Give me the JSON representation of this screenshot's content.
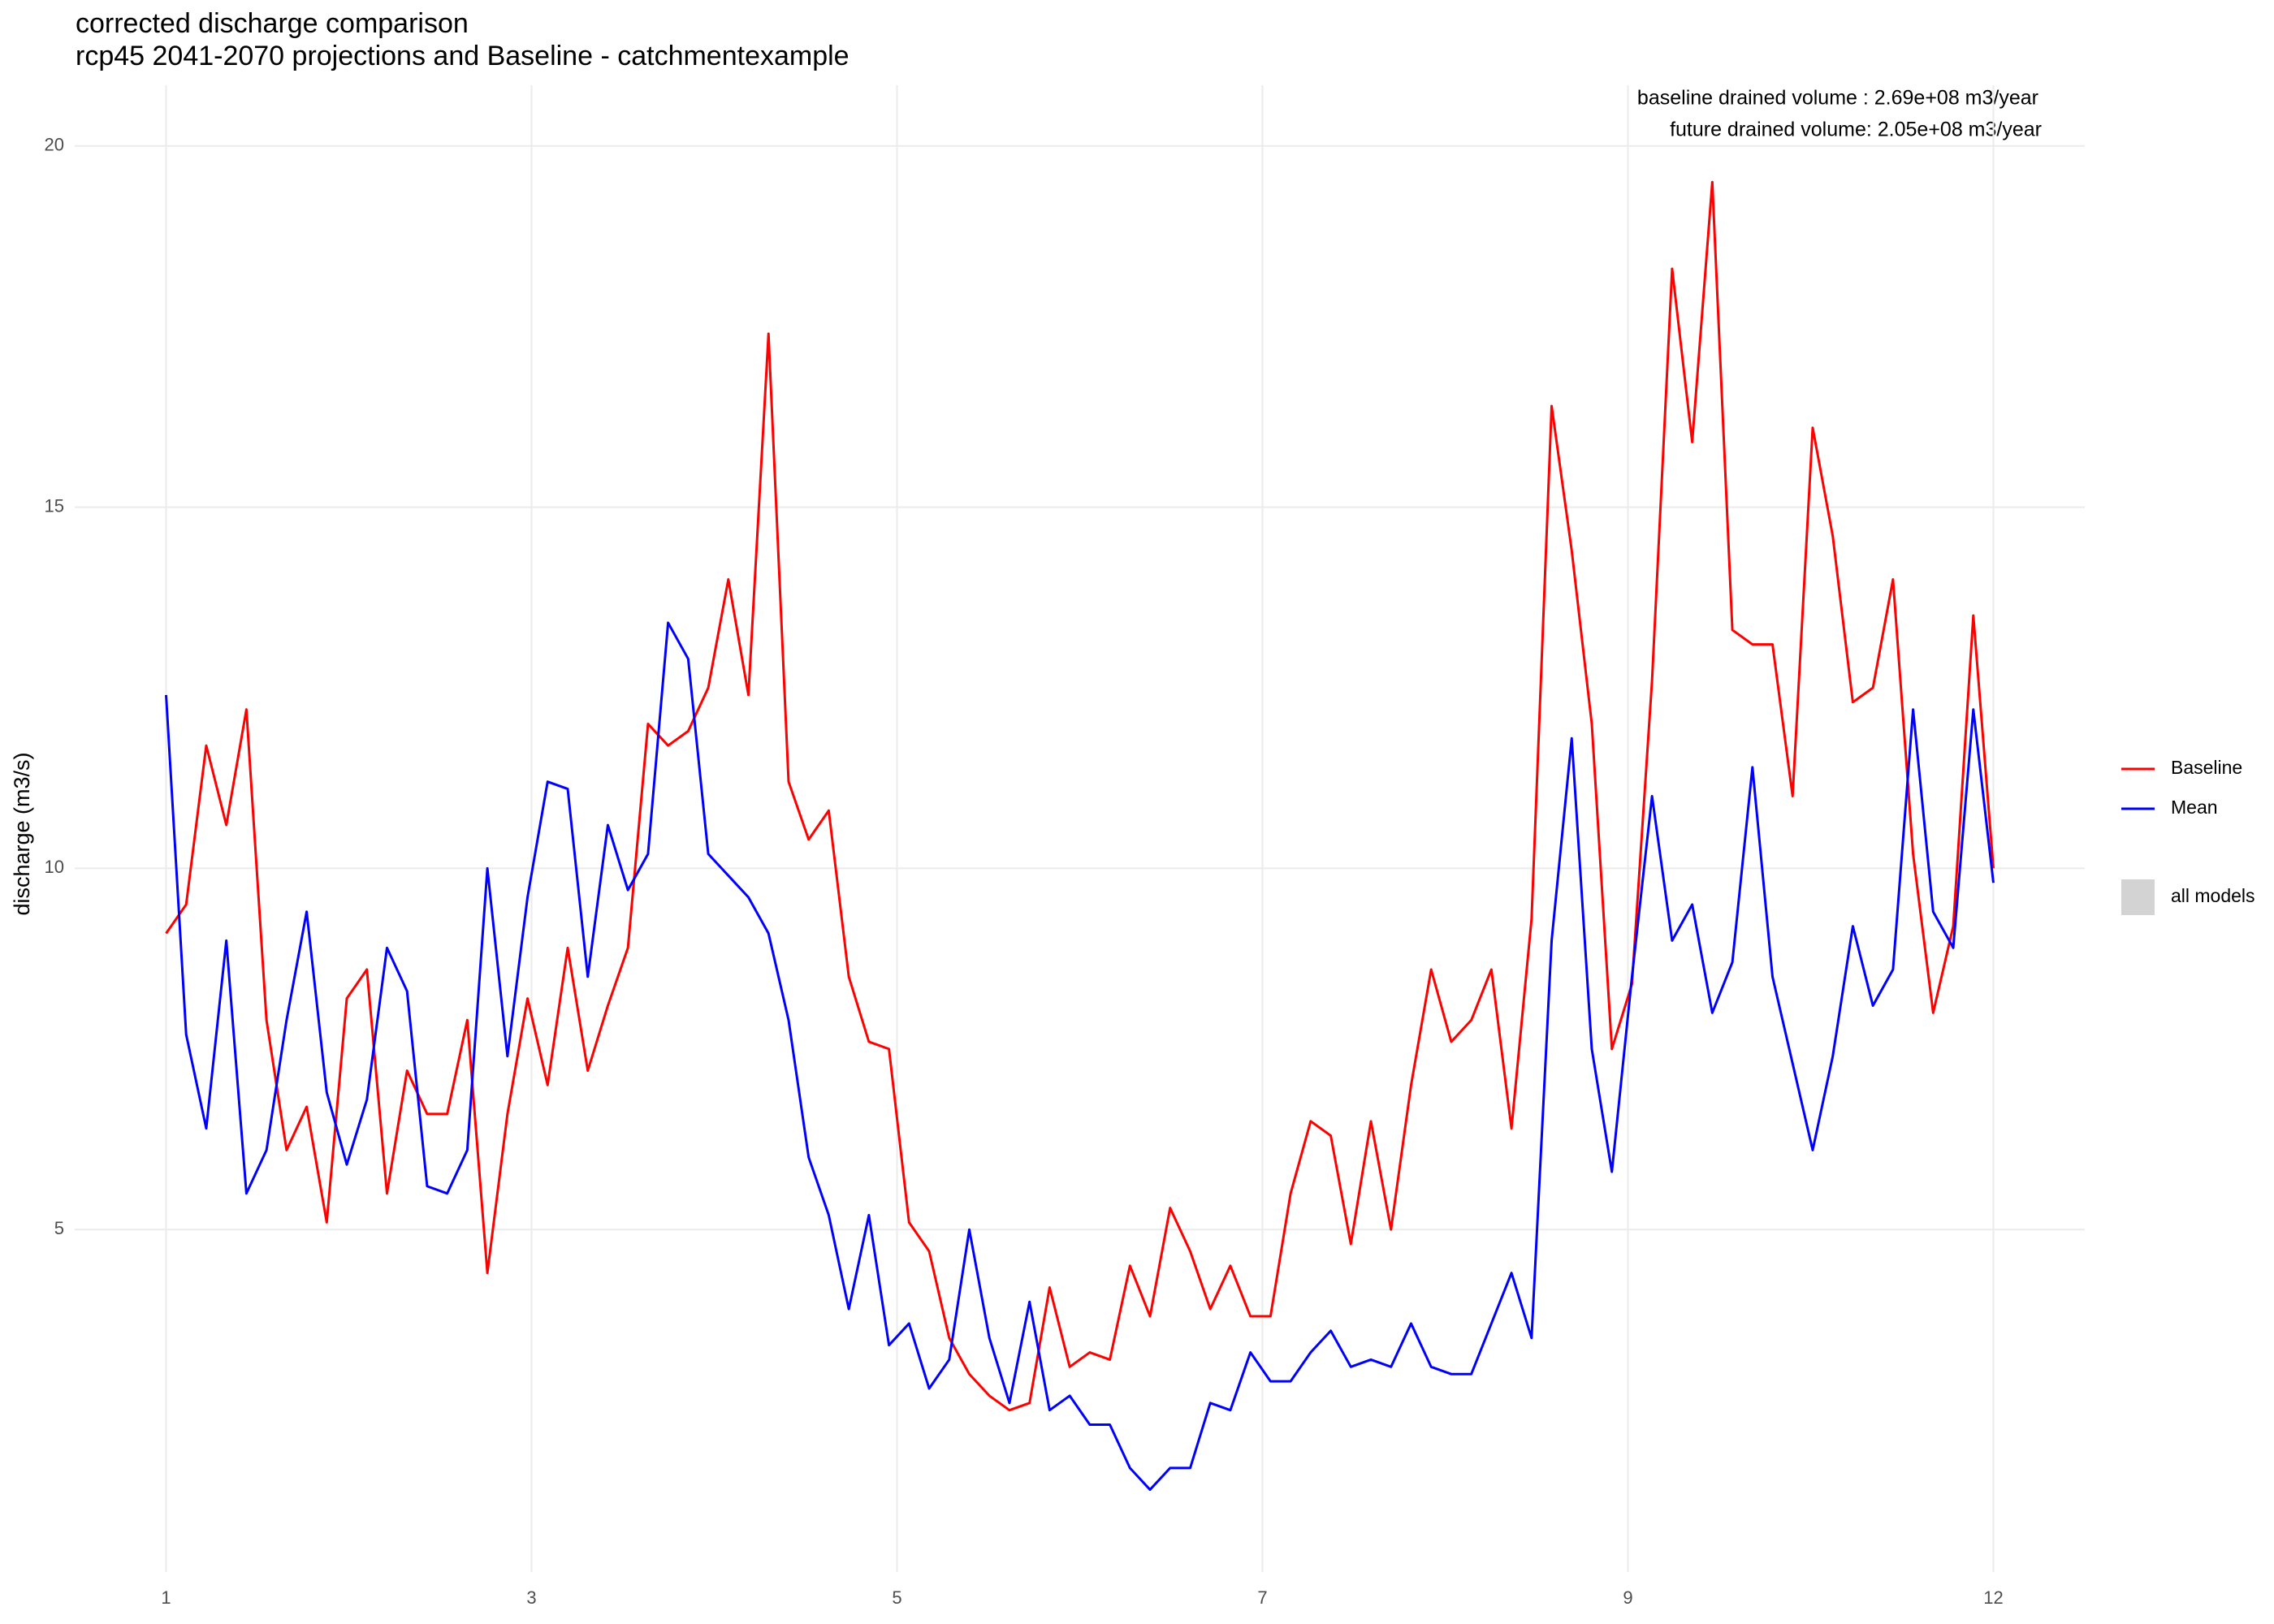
{
  "chart_data": {
    "type": "line",
    "title": "corrected discharge comparison",
    "subtitle": "rcp45 2041-2070 projections and Baseline - catchmentexample",
    "ylabel": "discharge (m3/s)",
    "annotations": [
      "baseline drained volume : 2.69e+08 m3/year",
      "future drained volume: 2.05e+08 m3/year"
    ],
    "x": [
      1,
      5,
      9,
      13,
      17,
      21,
      25,
      29,
      33,
      37,
      41,
      45,
      49,
      53,
      57,
      61,
      65,
      69,
      73,
      77,
      81,
      85,
      89,
      93,
      97,
      101,
      105,
      109,
      113,
      117,
      121,
      125,
      129,
      133,
      137,
      141,
      145,
      149,
      153,
      157,
      161,
      165,
      169,
      173,
      177,
      181,
      185,
      189,
      193,
      197,
      201,
      205,
      209,
      213,
      217,
      221,
      225,
      229,
      233,
      237,
      241,
      245,
      249,
      253,
      257,
      261,
      265,
      269,
      273,
      277,
      281,
      285,
      289,
      293,
      297,
      301,
      305,
      309,
      313,
      317,
      321,
      325,
      329,
      333,
      337,
      341,
      345,
      349,
      353,
      357,
      361,
      365
    ],
    "series": [
      {
        "name": "Baseline",
        "color": "#ff0000",
        "values": [
          9.1,
          9.5,
          11.7,
          10.6,
          12.2,
          7.9,
          6.1,
          6.7,
          5.1,
          8.2,
          8.6,
          5.5,
          7.2,
          6.6,
          6.6,
          7.9,
          4.4,
          6.6,
          8.2,
          7.0,
          8.9,
          7.2,
          8.1,
          8.9,
          12.0,
          11.7,
          11.9,
          12.5,
          14.0,
          12.4,
          17.4,
          11.2,
          10.4,
          10.8,
          8.5,
          7.6,
          7.5,
          5.1,
          4.7,
          3.5,
          3.0,
          2.7,
          2.5,
          2.6,
          4.2,
          3.1,
          3.3,
          3.2,
          4.5,
          3.8,
          5.3,
          4.7,
          3.9,
          4.5,
          3.8,
          3.8,
          5.5,
          6.5,
          6.3,
          4.8,
          6.5,
          5.0,
          7.0,
          8.6,
          7.6,
          7.9,
          8.6,
          6.4,
          9.3,
          16.4,
          14.4,
          12.0,
          7.5,
          8.4,
          12.6,
          18.3,
          15.9,
          19.5,
          13.3,
          13.1,
          13.1,
          11.0,
          16.1,
          14.6,
          12.3,
          12.5,
          14.0,
          10.2,
          8.0,
          9.2,
          13.5,
          10.0
        ]
      },
      {
        "name": "Mean",
        "color": "#0000ff",
        "values": [
          12.4,
          7.7,
          6.4,
          9.0,
          5.5,
          6.1,
          7.9,
          9.4,
          6.9,
          5.9,
          6.8,
          8.9,
          8.3,
          5.6,
          5.5,
          6.1,
          10.0,
          7.4,
          9.6,
          11.2,
          11.1,
          8.5,
          10.6,
          9.7,
          10.2,
          13.4,
          12.9,
          10.2,
          9.9,
          9.6,
          9.1,
          7.9,
          6.0,
          5.2,
          3.9,
          5.2,
          3.4,
          3.7,
          2.8,
          3.2,
          5.0,
          3.5,
          2.6,
          4.0,
          2.5,
          2.7,
          2.3,
          2.3,
          1.7,
          1.4,
          1.7,
          1.7,
          2.6,
          2.5,
          3.3,
          2.9,
          2.9,
          3.3,
          3.6,
          3.1,
          3.2,
          3.1,
          3.7,
          3.1,
          3.0,
          3.0,
          3.7,
          4.4,
          3.5,
          9.0,
          11.8,
          7.5,
          5.8,
          8.5,
          11.0,
          9.0,
          9.5,
          8.0,
          8.7,
          11.4,
          8.5,
          7.3,
          6.1,
          7.4,
          9.2,
          8.1,
          8.6,
          12.2,
          9.4,
          8.9,
          12.2,
          9.8
        ]
      }
    ],
    "ribbons": [
      {
        "name": "all models",
        "color": "#d3d3d3"
      }
    ],
    "xlim": [
      -17.2,
      383.2
    ],
    "xticks": [
      {
        "value": 1,
        "label": "1"
      },
      {
        "value": 73.8,
        "label": "3"
      },
      {
        "value": 146.6,
        "label": "5"
      },
      {
        "value": 219.4,
        "label": "7"
      },
      {
        "value": 292.2,
        "label": "9"
      },
      {
        "value": 365,
        "label": "12"
      }
    ],
    "ylim": [
      0.26,
      20.84
    ],
    "yticks": [
      5,
      10,
      15,
      20
    ],
    "grid": true
  }
}
